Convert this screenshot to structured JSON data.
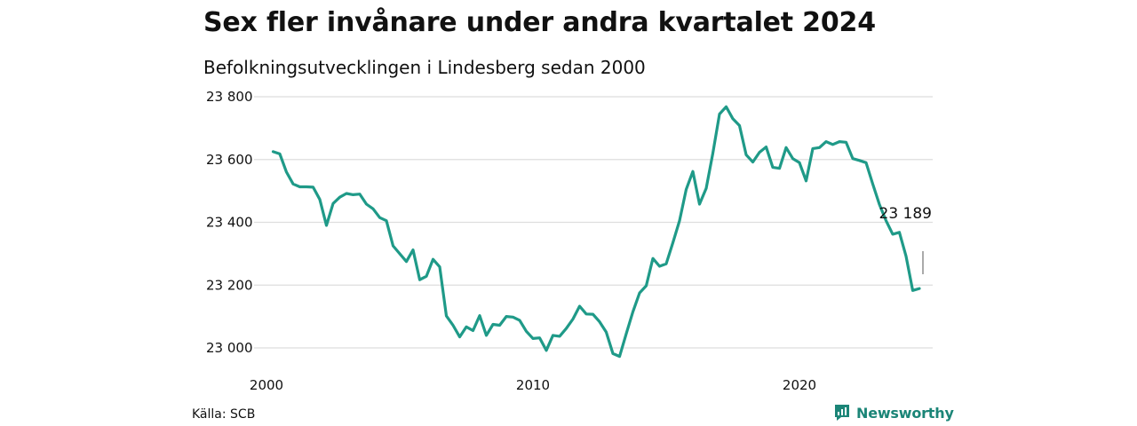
{
  "title": "Sex fler invånare under andra kvartalet 2024",
  "subtitle": "Befolkningsutvecklingen i Lindesberg sedan 2000",
  "source": "Källa: SCB",
  "brand": {
    "name": "Newsworthy",
    "icon": "newsworthy-logo-icon",
    "color": "#1b8577"
  },
  "chart_data": {
    "type": "line",
    "title": "Sex fler invånare under andra kvartalet 2024",
    "subtitle": "Befolkningsutvecklingen i Lindesberg sedan 2000",
    "xlabel": "",
    "ylabel": "",
    "x_ticks": [
      "2000",
      "2010",
      "2020"
    ],
    "y_ticks": [
      "23 000",
      "23 200",
      "23 400",
      "23 600",
      "23 800"
    ],
    "xlim": [
      2000,
      2025
    ],
    "ylim": [
      22950,
      23820
    ],
    "grid": "horizontal",
    "line_color": "#1f9a88",
    "series": [
      {
        "x": [
          2000.25,
          2000.5,
          2000.75,
          2001.0,
          2001.25,
          2001.5,
          2001.75,
          2002.0,
          2002.25,
          2002.5,
          2002.75,
          2003.0,
          2003.25,
          2003.5,
          2003.75,
          2004.0,
          2004.25,
          2004.5,
          2004.75,
          2005.0,
          2005.25,
          2005.5,
          2005.75,
          2006.0,
          2006.25,
          2006.5,
          2006.75,
          2007.0,
          2007.25,
          2007.5,
          2007.75,
          2008.0,
          2008.25,
          2008.5,
          2008.75,
          2009.0,
          2009.25,
          2009.5,
          2009.75,
          2010.0,
          2010.25,
          2010.5,
          2010.75,
          2011.0,
          2011.25,
          2011.5,
          2011.75,
          2012.0,
          2012.25,
          2012.5,
          2012.75,
          2013.0,
          2013.25,
          2013.5,
          2013.75,
          2014.0,
          2014.25,
          2014.5,
          2014.75,
          2015.0,
          2015.25,
          2015.5,
          2015.75,
          2016.0,
          2016.25,
          2016.5,
          2016.75,
          2017.0,
          2017.25,
          2017.5,
          2017.75,
          2018.0,
          2018.25,
          2018.5,
          2018.75,
          2019.0,
          2019.25,
          2019.5,
          2019.75,
          2020.0,
          2020.25,
          2020.5,
          2020.75,
          2021.0,
          2021.25,
          2021.5,
          2021.75,
          2022.0,
          2022.25,
          2022.5,
          2022.75,
          2023.0,
          2023.25,
          2023.5,
          2023.75,
          2024.0,
          2024.25,
          2024.5
        ],
        "values": [
          23625,
          23618,
          23560,
          23522,
          23513,
          23513,
          23512,
          23473,
          23390,
          23460,
          23480,
          23492,
          23488,
          23490,
          23458,
          23443,
          23415,
          23405,
          23325,
          23300,
          23275,
          23312,
          23217,
          23228,
          23282,
          23258,
          23102,
          23072,
          23035,
          23067,
          23055,
          23103,
          23040,
          23075,
          23072,
          23100,
          23098,
          23088,
          23053,
          23030,
          23032,
          22992,
          23040,
          23037,
          23062,
          23092,
          23133,
          23108,
          23107,
          23083,
          23050,
          22982,
          22973,
          23045,
          23115,
          23175,
          23198,
          23285,
          23260,
          23268,
          23335,
          23405,
          23505,
          23562,
          23458,
          23508,
          23620,
          23745,
          23768,
          23730,
          23708,
          23615,
          23592,
          23623,
          23640,
          23575,
          23572,
          23638,
          23603,
          23590,
          23532,
          23635,
          23638,
          23657,
          23648,
          23657,
          23655,
          23603,
          23597,
          23590,
          23522,
          23457,
          23405,
          23362,
          23368,
          23292,
          23183,
          23189
        ]
      }
    ],
    "annotation": {
      "label": "23 189",
      "x": 2024.5,
      "value": 23189
    }
  }
}
